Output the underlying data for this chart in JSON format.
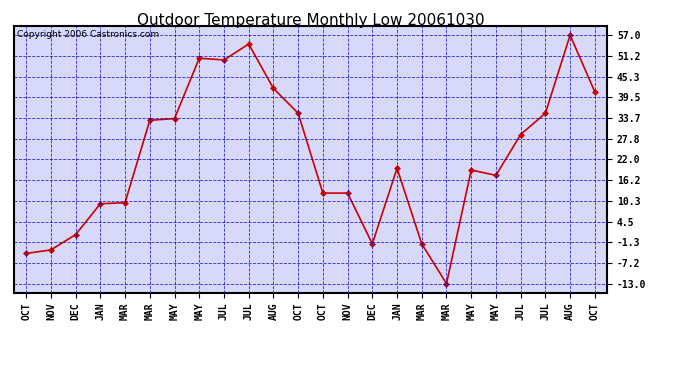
{
  "title": "Outdoor Temperature Monthly Low 20061030",
  "copyright": "Copyright 2006 Castronics.com",
  "x_labels": [
    "OCT",
    "NOV",
    "DEC",
    "JAN",
    "MAR",
    "MAR",
    "MAY",
    "MAY",
    "JUL",
    "JUL",
    "AUG",
    "OCT",
    "OCT",
    "NOV",
    "DEC",
    "JAN",
    "MAR",
    "MAR",
    "MAY",
    "MAY",
    "JUL",
    "JUL",
    "AUG",
    "OCT"
  ],
  "y_values": [
    -4.5,
    -3.5,
    0.8,
    9.5,
    9.8,
    33.0,
    33.5,
    50.5,
    50.0,
    54.5,
    42.0,
    35.0,
    12.5,
    12.5,
    -1.8,
    19.5,
    -1.8,
    -13.0,
    19.0,
    17.5,
    29.0,
    35.0,
    57.0,
    41.0
  ],
  "background_color": "#d8d8f8",
  "plot_bg_color": "#d8d8f8",
  "fig_bg_color": "#ffffff",
  "grid_color": "#0000bb",
  "line_color": "#cc0000",
  "marker_color": "#cc0000",
  "y_ticks": [
    -13.0,
    -7.2,
    -1.3,
    4.5,
    10.3,
    16.2,
    22.0,
    27.8,
    33.7,
    39.5,
    45.3,
    51.2,
    57.0
  ],
  "title_fontsize": 11,
  "copyright_fontsize": 6.5,
  "tick_fontsize": 7,
  "y_min": -15.5,
  "y_max": 59.5
}
